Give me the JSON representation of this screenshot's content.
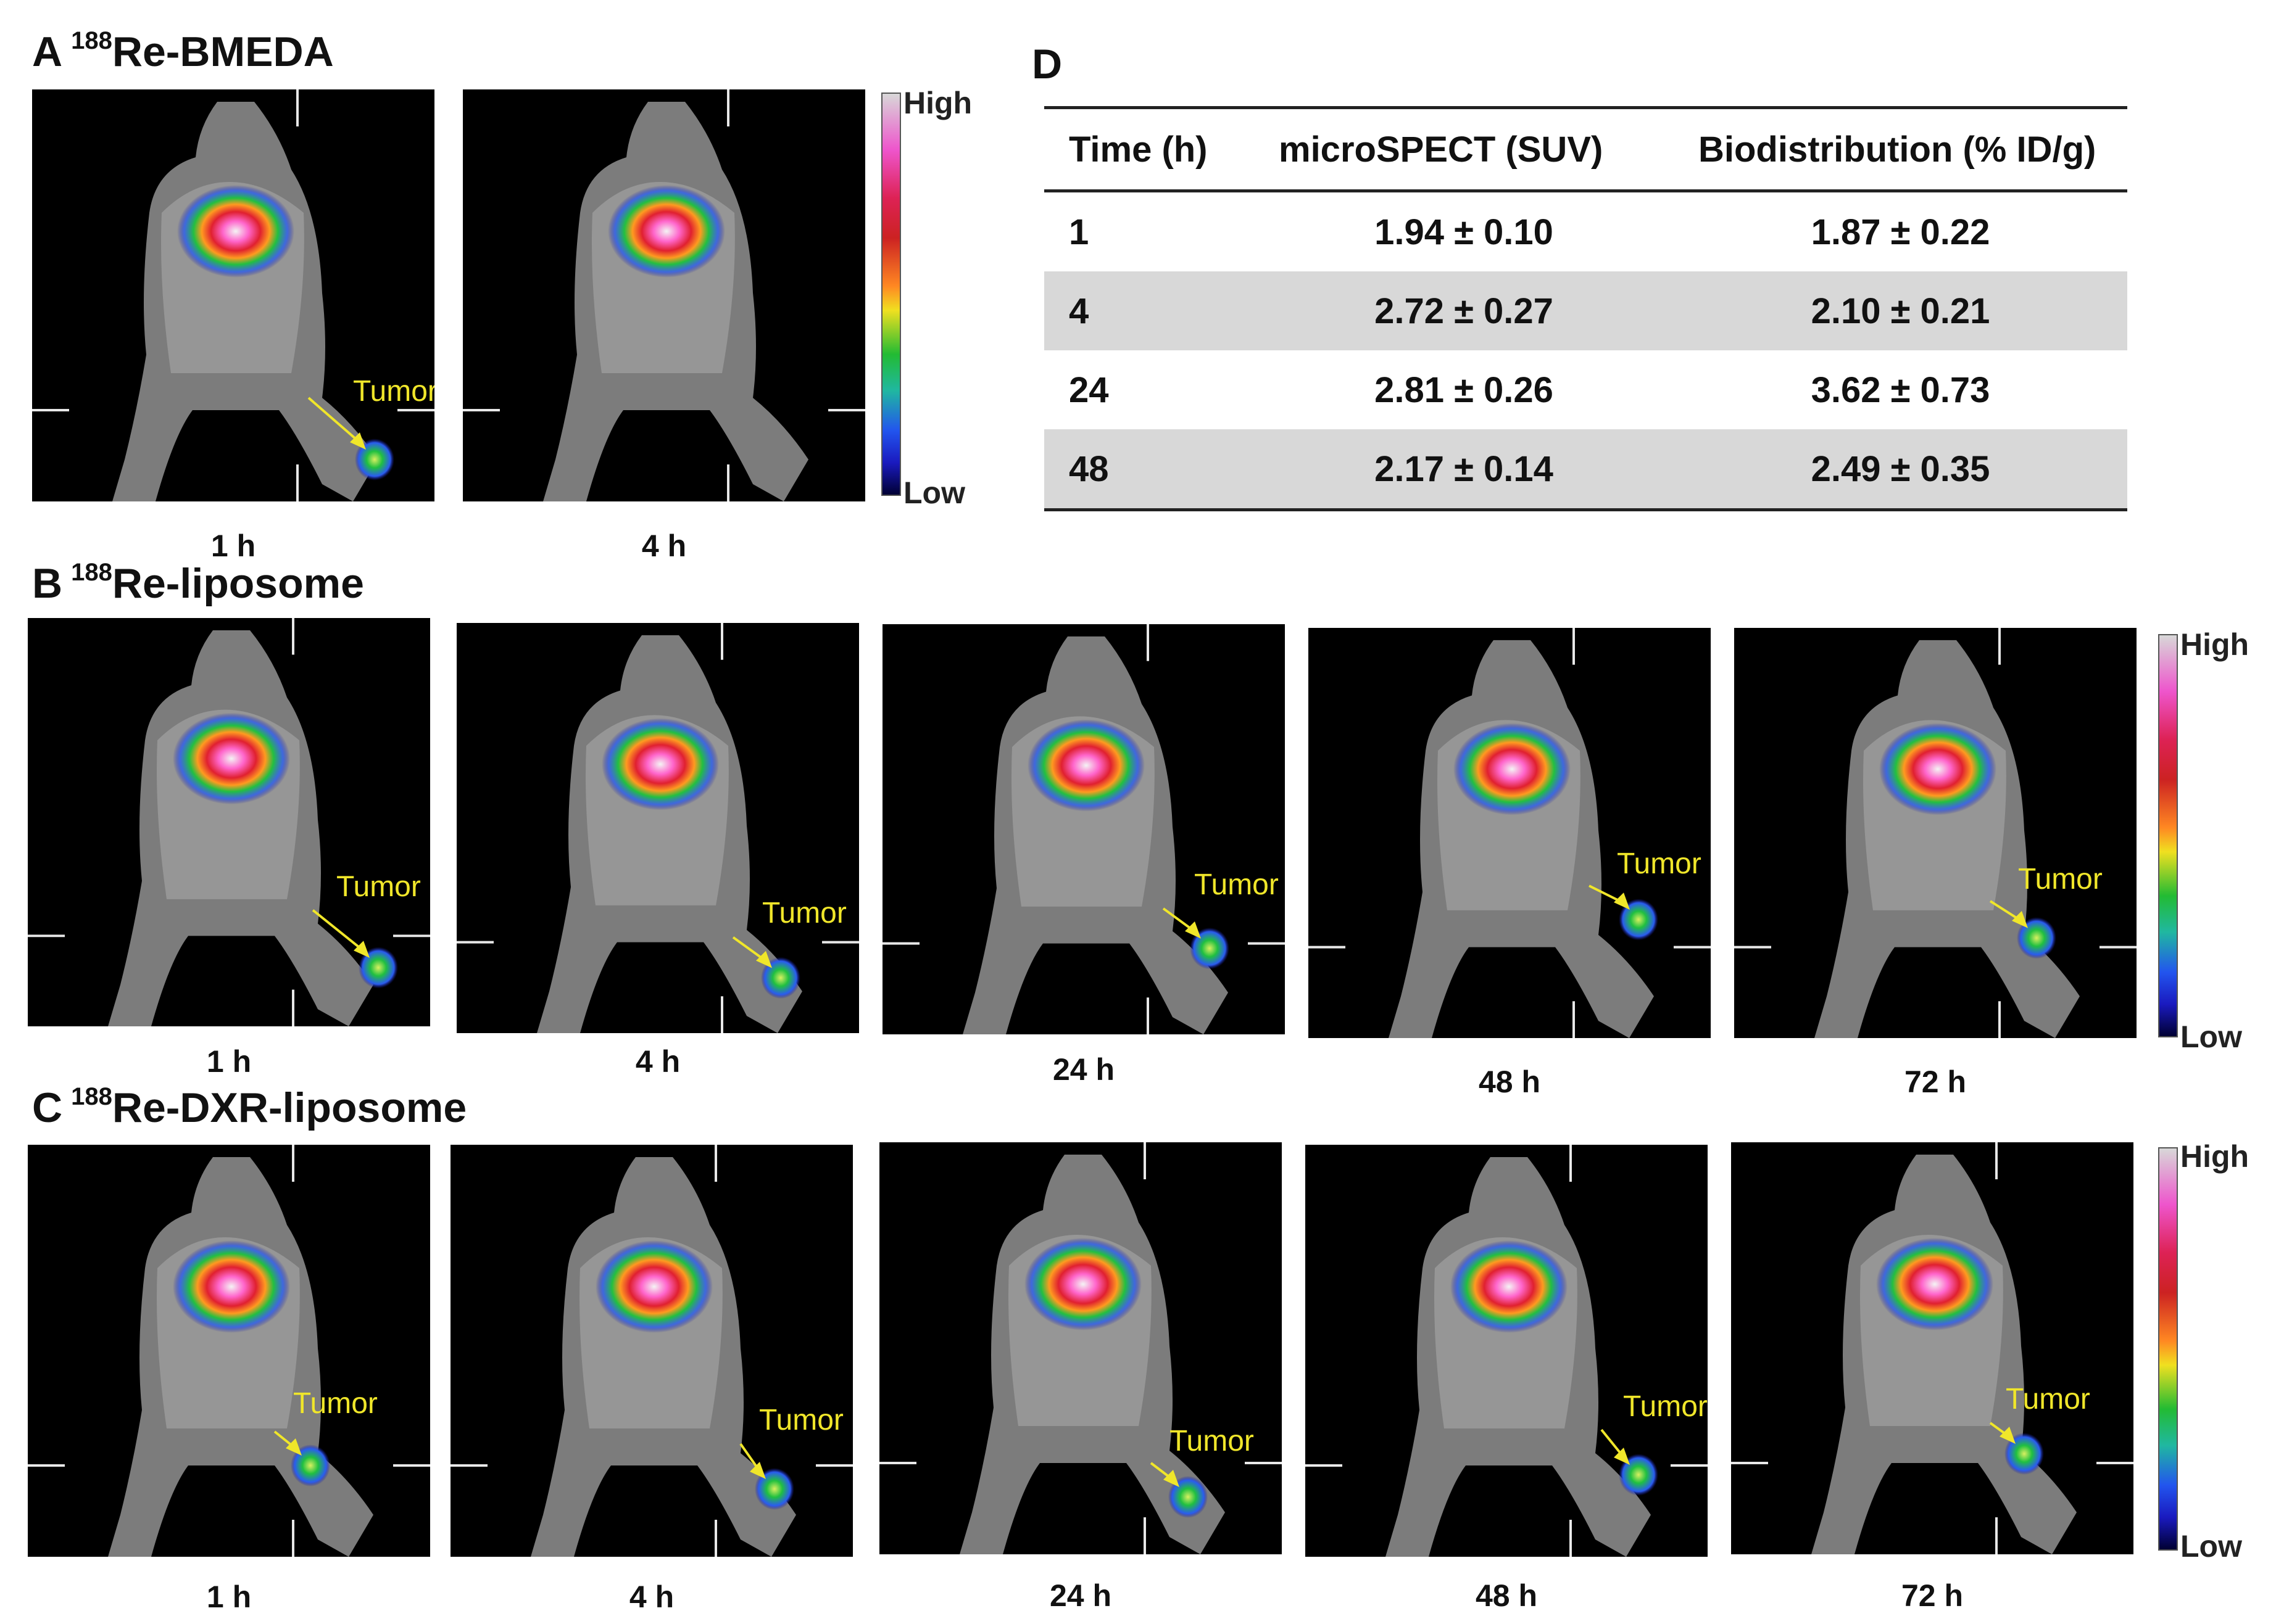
{
  "panels": {
    "A": {
      "letter": "A",
      "superscript": "188",
      "compound": "Re-BMEDA",
      "times": [
        "1 h",
        "4 h"
      ]
    },
    "B": {
      "letter": "B",
      "superscript": "188",
      "compound": "Re-liposome",
      "times": [
        "1 h",
        "4 h",
        "24 h",
        "48 h",
        "72 h"
      ]
    },
    "C": {
      "letter": "C",
      "superscript": "188",
      "compound": "Re-DXR-liposome",
      "times": [
        "1 h",
        "4 h",
        "24 h",
        "48 h",
        "72 h"
      ]
    },
    "D": {
      "letter": "D"
    }
  },
  "tumor_label": "Tumor",
  "colorbar": {
    "high": "High",
    "low": "Low"
  },
  "table": {
    "headers": [
      "Time (h)",
      "microSPECT (SUV)",
      "Biodistribution (% ID/g)"
    ],
    "rows": [
      [
        "1",
        "1.94 ± 0.10",
        "1.87 ± 0.22"
      ],
      [
        "4",
        "2.72 ± 0.27",
        "2.10 ± 0.21"
      ],
      [
        "24",
        "2.81 ± 0.26",
        "3.62 ± 0.73"
      ],
      [
        "48",
        "2.17 ± 0.14",
        "2.49 ± 0.35"
      ]
    ]
  },
  "colors": {
    "tumor_label": "#f0e62a",
    "table_shade": "#d8d8d8",
    "background": "#ffffff"
  }
}
